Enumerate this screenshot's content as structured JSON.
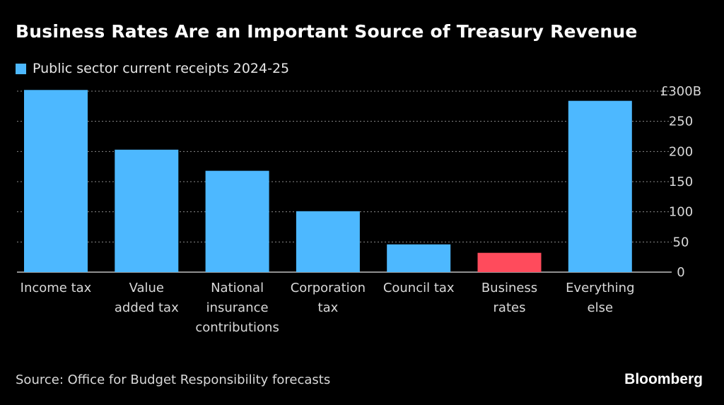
{
  "title": "Business Rates Are an Important Source of Treasury Revenue",
  "legend": {
    "label": "Public sector current receipts 2024-25",
    "color": "#4db8ff"
  },
  "source": "Source: Office for Budget Responsibility forecasts",
  "brand": "Bloomberg",
  "colors": {
    "background": "#000000",
    "bar_default": "#4db8ff",
    "bar_highlight": "#ff4b5c",
    "grid": "#8a8a8a"
  },
  "chart_data": {
    "type": "bar",
    "categories": [
      [
        "Income tax"
      ],
      [
        "Value",
        "added tax"
      ],
      [
        "National",
        "insurance",
        "contributions"
      ],
      [
        "Corporation",
        "tax"
      ],
      [
        "Council tax"
      ],
      [
        "Business",
        "rates"
      ],
      [
        "Everything",
        "else"
      ]
    ],
    "category_names": [
      "Income tax",
      "Value added tax",
      "National insurance contributions",
      "Corporation tax",
      "Council tax",
      "Business rates",
      "Everything else"
    ],
    "series": [
      {
        "name": "Public sector current receipts 2024-25",
        "values": [
          302,
          203,
          168,
          101,
          46,
          32,
          284
        ]
      }
    ],
    "highlight_index": 5,
    "y_ticks": [
      0,
      50,
      100,
      150,
      200,
      250,
      300
    ],
    "y_tick_labels": [
      "0",
      "50",
      "100",
      "150",
      "200",
      "250",
      "£300B"
    ],
    "ylim": [
      0,
      310
    ],
    "y_axis_position": "right",
    "grid": true,
    "legend_position": "top-left"
  }
}
